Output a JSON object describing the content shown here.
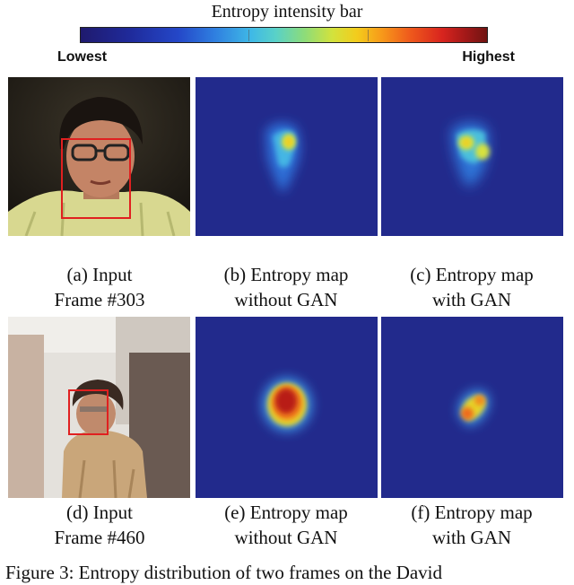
{
  "colorbar": {
    "title": "Entropy intensity bar",
    "low_label": "Lowest",
    "high_label": "Highest"
  },
  "rows": [
    {
      "panels": [
        {
          "line1": "(a) Input",
          "line2": "Frame #303"
        },
        {
          "line1": "(b) Entropy map",
          "line2": "without GAN"
        },
        {
          "line1": "(c) Entropy map",
          "line2": "with GAN"
        }
      ]
    },
    {
      "panels": [
        {
          "line1": "(d) Input",
          "line2": "Frame #460"
        },
        {
          "line1": "(e) Entropy map",
          "line2": "without GAN"
        },
        {
          "line1": "(f) Entropy map",
          "line2": "with GAN"
        }
      ]
    }
  ],
  "figure_caption_partial": "Figure 3: Entropy distribution of two frames on the David",
  "colors": {
    "map_background": "#222a8c",
    "face_box": "#e02020"
  }
}
